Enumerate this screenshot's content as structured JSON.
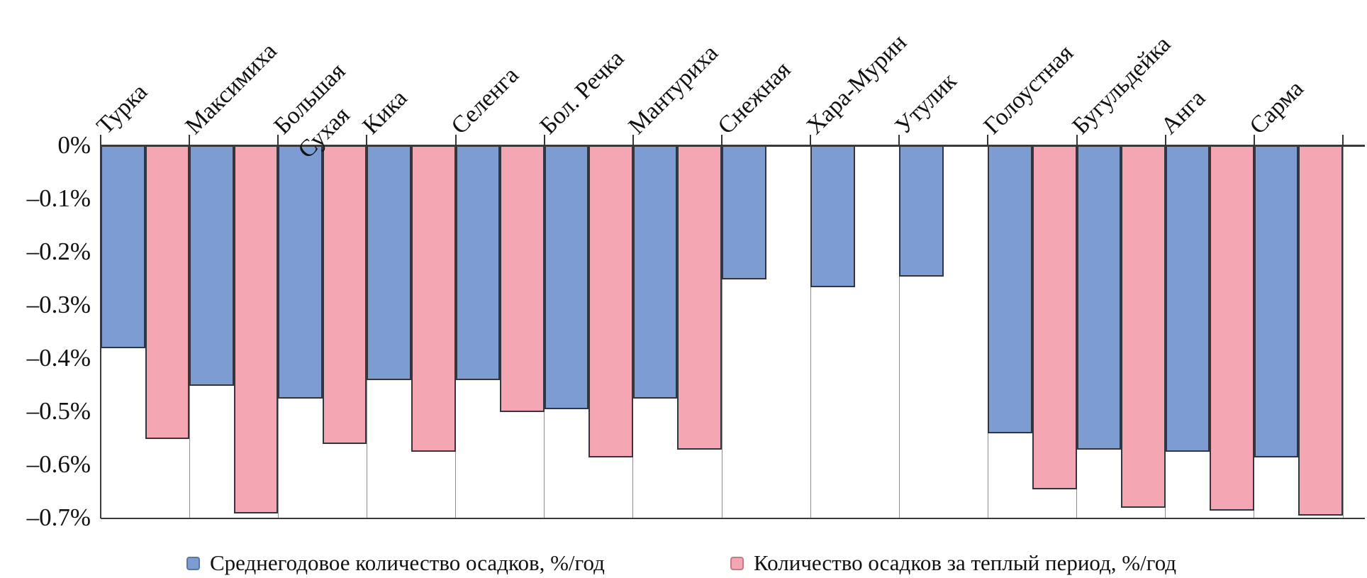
{
  "chart_data": {
    "type": "bar",
    "title": "",
    "xlabel": "",
    "ylabel": "",
    "ylim": [
      -0.7,
      0
    ],
    "grid": "column-separators",
    "legend_position": "bottom",
    "y_tick_labels": [
      "0%",
      "–0.1%",
      "–0.2%",
      "–0.3%",
      "–0.4%",
      "–0.5%",
      "–0.6%",
      "–0.7%"
    ],
    "categories": [
      "Турка",
      "Максимиха",
      "Большая Сухая",
      "Кика",
      "Селенга",
      "Бол. Речка",
      "Мантуриха",
      "Снежная",
      "Хара-Мурин",
      "Утулик",
      "Голоустная",
      "Бугульдейка",
      "Анга",
      "Сарма"
    ],
    "category_label_lines": [
      [
        "Турка"
      ],
      [
        "Максимиха"
      ],
      [
        "Большая",
        "Сухая"
      ],
      [
        "Кика"
      ],
      [
        "Селенга"
      ],
      [
        "Бол. Речка"
      ],
      [
        "Мантуриха"
      ],
      [
        "Снежная"
      ],
      [
        "Хара-Мурин"
      ],
      [
        "Утулик"
      ],
      [
        "Голоустная"
      ],
      [
        "Бугульдейка"
      ],
      [
        "Анга"
      ],
      [
        "Сарма"
      ]
    ],
    "series": [
      {
        "name": "Среднегодовое количество осадков, %/год",
        "color": "#7D9DD2",
        "border_color": "#32373f",
        "values": [
          -0.38,
          -0.45,
          -0.475,
          -0.44,
          -0.44,
          -0.495,
          -0.475,
          -0.25,
          -0.265,
          -0.245,
          -0.54,
          -0.57,
          -0.575,
          -0.585
        ]
      },
      {
        "name": "Количество осадков за теплый период, %/год",
        "color": "#F4A7B3",
        "border_color": "#32373f",
        "values": [
          -0.55,
          -0.69,
          -0.56,
          -0.575,
          -0.5,
          -0.585,
          -0.57,
          null,
          null,
          null,
          -0.645,
          -0.68,
          -0.685,
          -0.695
        ]
      }
    ],
    "units": "%/год"
  },
  "legend": {
    "annual_label": "Среднегодовое количество осадков, %/год",
    "warm_label": "Количество осадков за теплый период, %/год"
  },
  "colors": {
    "annual_fill": "#7D9DD2",
    "annual_border": "#5577B0",
    "warm_fill": "#F4A7B3",
    "warm_border": "#C9798C",
    "axis": "#3a3a3a",
    "separator": "#8f8f8f",
    "text": "#111111"
  }
}
